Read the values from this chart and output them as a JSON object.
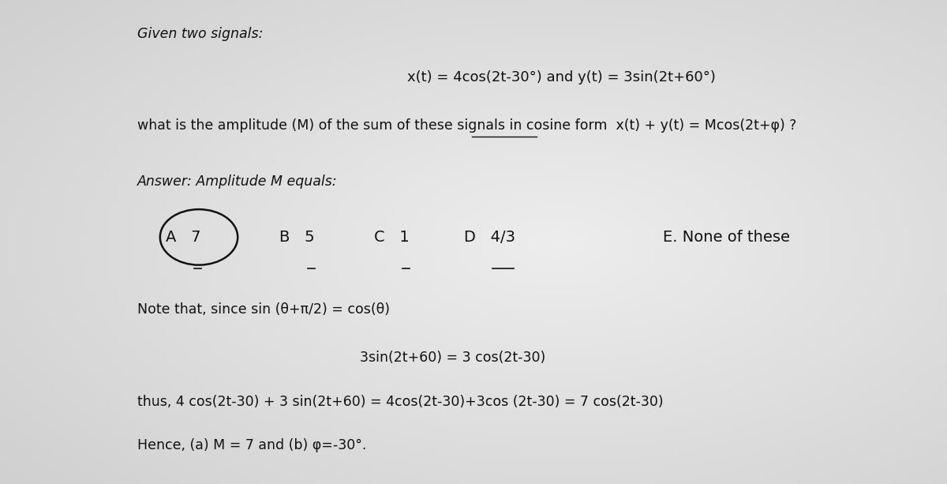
{
  "bg_color": "#c8c8c8",
  "text_color": "#111111",
  "title": "Given two signals:",
  "signals": "x(t) = 4cos(2t-30°) and y(t) = 3sin(2t+60°)",
  "question_part1": "what is the amplitude (M) of the sum of these signals in ",
  "question_underlined": "cosine form",
  "question_part2": "  x(t) + y(t) = Mcos(2t+φ) ?",
  "answer_label": "Answer: Amplitude M equals:",
  "choices": [
    {
      "label": "A",
      "value": "7",
      "circled": true
    },
    {
      "label": "B",
      "value": "5",
      "circled": false
    },
    {
      "label": "C",
      "value": "1",
      "circled": false
    },
    {
      "label": "D",
      "value": "4/3",
      "circled": false
    },
    {
      "label": "E",
      "value": "None of these",
      "circled": false,
      "no_underline": true
    }
  ],
  "note_line": "Note that, since sin (θ+π/2) = cos(θ)",
  "step1": "3sin(2t+60) = 3 cos(2t-30)",
  "step2": "thus, 4 cos(2t-30) + 3 sin(2t+60) = 4cos(2t-30)+3cos (2t-30) = 7 cos(2t-30)",
  "conclusion": "Hence, (a) M = 7 and (b) φ=-30°.",
  "figsize": [
    12.0,
    6.13
  ],
  "dpi": 100
}
